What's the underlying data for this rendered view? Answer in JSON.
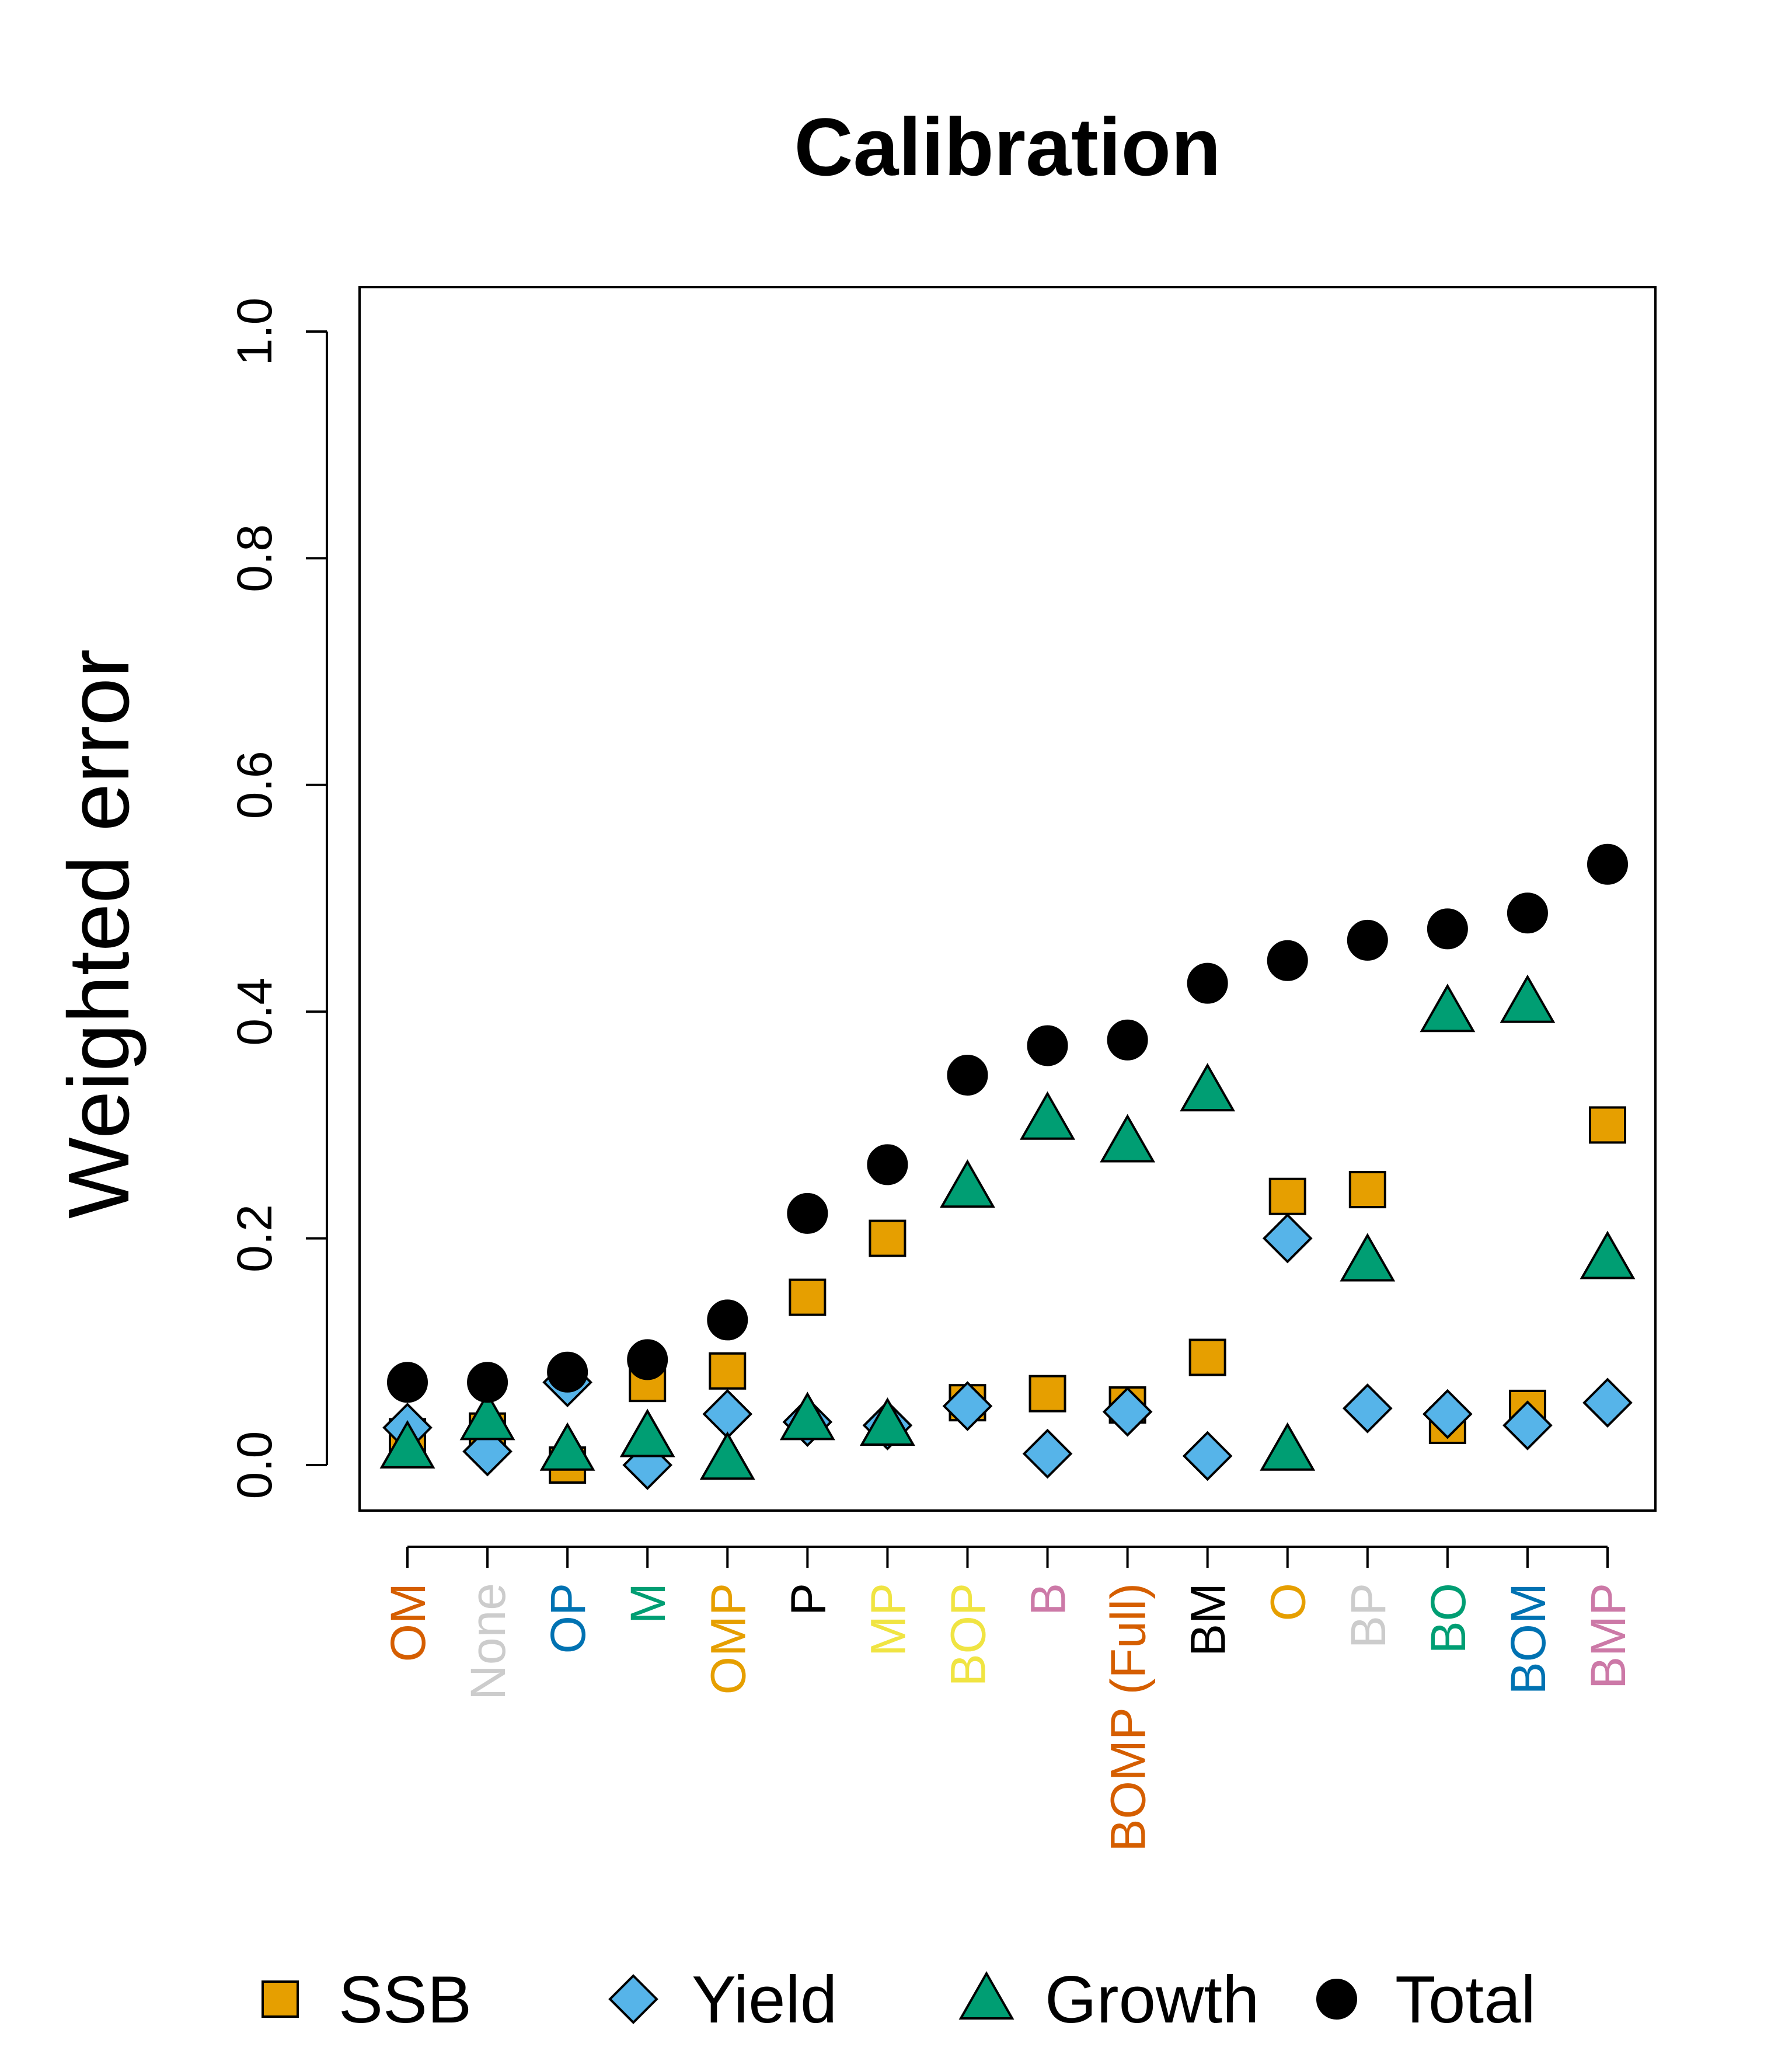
{
  "chart_data": {
    "type": "scatter",
    "title": "Calibration",
    "xlabel": "",
    "ylabel": "Weighted error",
    "ylim": [
      0.0,
      1.0
    ],
    "yticks": [
      "0.0",
      "0.2",
      "0.4",
      "0.6",
      "0.8",
      "1.0"
    ],
    "grid": false,
    "legend_position": "bottom",
    "categories": [
      {
        "label": "OM",
        "color": "#D55E00"
      },
      {
        "label": "None",
        "color": "#CCCCCC"
      },
      {
        "label": "OP",
        "color": "#0072B2"
      },
      {
        "label": "M",
        "color": "#009E73"
      },
      {
        "label": "OMP",
        "color": "#E69F00"
      },
      {
        "label": "P",
        "color": "#000000"
      },
      {
        "label": "MP",
        "color": "#F0E442"
      },
      {
        "label": "BOP",
        "color": "#F0E442"
      },
      {
        "label": "B",
        "color": "#CC79A7"
      },
      {
        "label": "BOMP (Full)",
        "color": "#D55E00"
      },
      {
        "label": "BM",
        "color": "#000000"
      },
      {
        "label": "O",
        "color": "#E69F00"
      },
      {
        "label": "BP",
        "color": "#CCCCCC"
      },
      {
        "label": "BO",
        "color": "#009E73"
      },
      {
        "label": "BOM",
        "color": "#0072B2"
      },
      {
        "label": "BMP",
        "color": "#CC79A7"
      }
    ],
    "series": [
      {
        "name": "SSB",
        "marker": "square",
        "color": "#E69F00",
        "values": [
          0.025,
          0.03,
          0.0,
          0.072,
          0.083,
          0.148,
          0.2,
          0.055,
          0.063,
          0.053,
          0.095,
          0.237,
          0.243,
          0.035,
          0.05,
          0.3
        ]
      },
      {
        "name": "Yield",
        "marker": "diamond",
        "color": "#56B4E9",
        "values": [
          0.033,
          0.012,
          0.073,
          0.0,
          0.045,
          0.038,
          0.035,
          0.052,
          0.01,
          0.047,
          0.008,
          0.2,
          0.05,
          0.045,
          0.035,
          0.055
        ]
      },
      {
        "name": "Growth",
        "marker": "triangle",
        "color": "#009E73",
        "values": [
          0.015,
          0.04,
          0.013,
          0.025,
          0.005,
          0.04,
          0.035,
          0.245,
          0.305,
          0.285,
          0.33,
          0.013,
          0.18,
          0.4,
          0.408,
          0.182
        ]
      },
      {
        "name": "Total",
        "marker": "circle",
        "color": "#000000",
        "values": [
          0.073,
          0.073,
          0.082,
          0.093,
          0.128,
          0.222,
          0.265,
          0.344,
          0.37,
          0.375,
          0.425,
          0.445,
          0.463,
          0.473,
          0.487,
          0.53
        ]
      }
    ]
  }
}
